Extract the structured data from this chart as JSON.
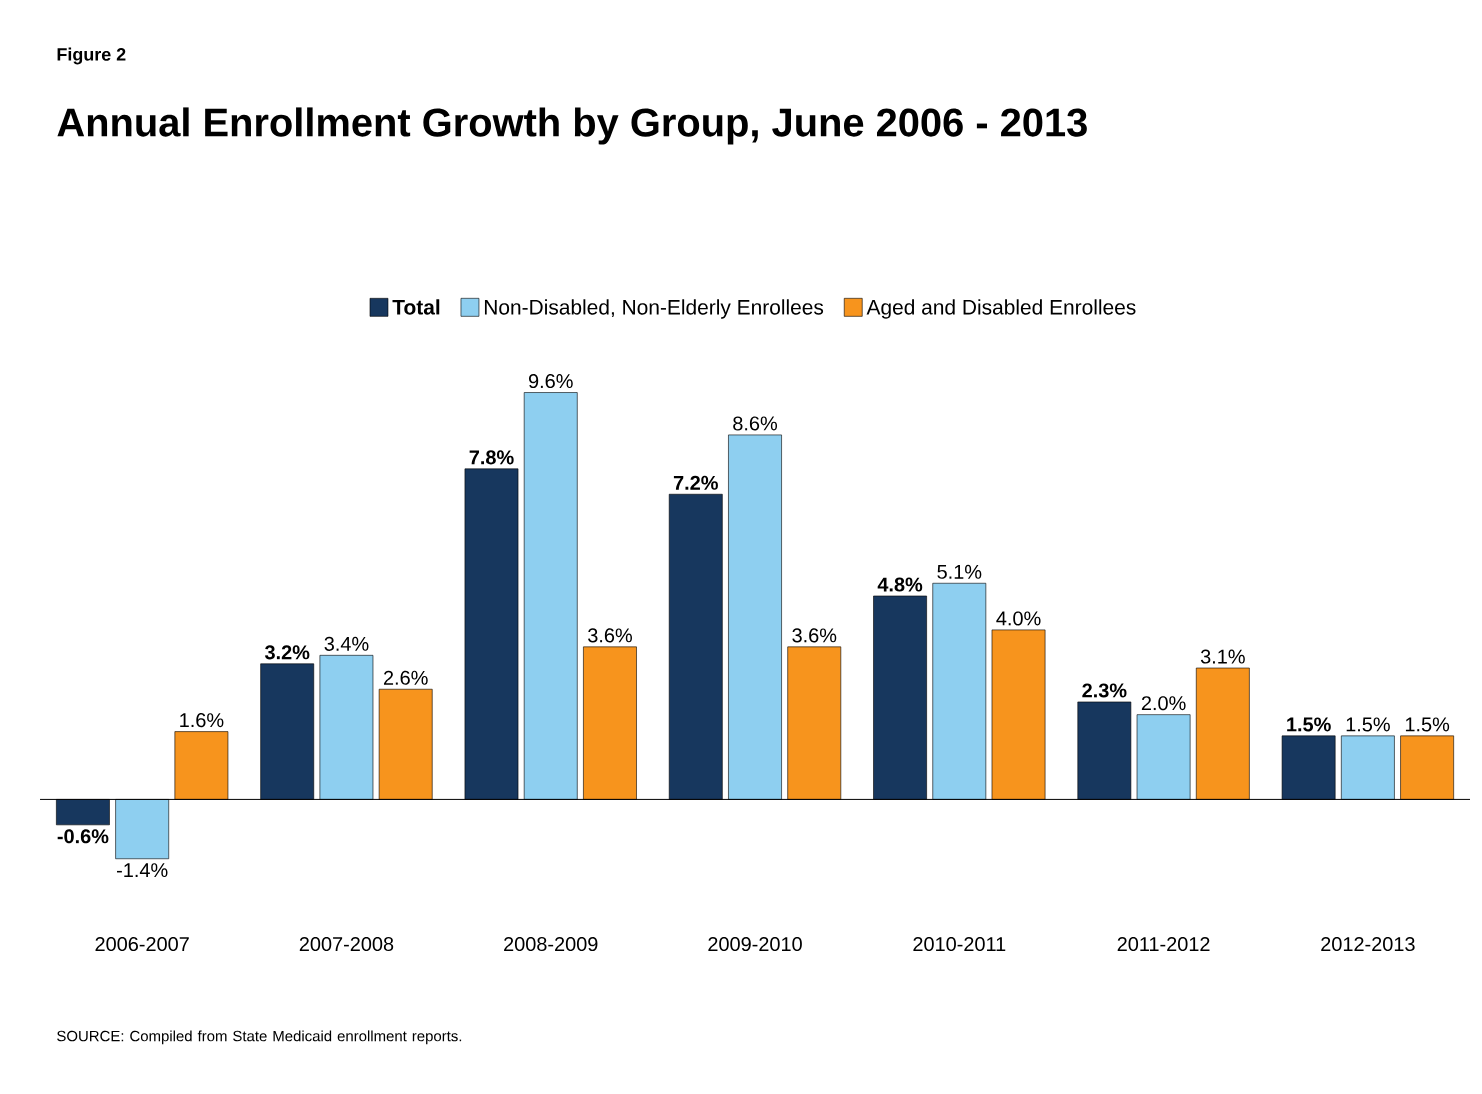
{
  "chart_data": {
    "type": "bar",
    "title": "Annual Enrollment Growth by Group, June 2006 - 2013",
    "categories": [
      "2006-2007",
      "2007-2008",
      "2008-2009",
      "2009-2010",
      "2010-2011",
      "2011-2012",
      "2012-2013"
    ],
    "series": [
      {
        "name": "Total",
        "color": "#17375e",
        "values": [
          -0.6,
          3.2,
          7.8,
          7.2,
          4.8,
          2.3,
          1.5
        ],
        "value_labels": [
          "-0.6%",
          "3.2%",
          "7.8%",
          "7.2%",
          "4.8%",
          "2.3%",
          "1.5%"
        ]
      },
      {
        "name": "Non-Disabled, Non-Elderly Enrollees",
        "color": "#8ecff0",
        "values": [
          -1.4,
          3.4,
          9.6,
          8.6,
          5.1,
          2.0,
          1.5
        ],
        "value_labels": [
          "-1.4%",
          "3.4%",
          "9.6%",
          "8.6%",
          "5.1%",
          "2.0%",
          "1.5%"
        ]
      },
      {
        "name": "Aged and Disabled Enrollees",
        "color": "#f7941d",
        "values": [
          1.6,
          2.6,
          3.6,
          3.6,
          4.0,
          3.1,
          1.5
        ],
        "value_labels": [
          "1.6%",
          "2.6%",
          "3.6%",
          "3.6%",
          "4.0%",
          "3.1%",
          "1.5%"
        ]
      }
    ],
    "legend": "top",
    "annotations": [
      "Figure 2",
      "SOURCE: Compiled from State Medicaid enrollment reports."
    ]
  }
}
